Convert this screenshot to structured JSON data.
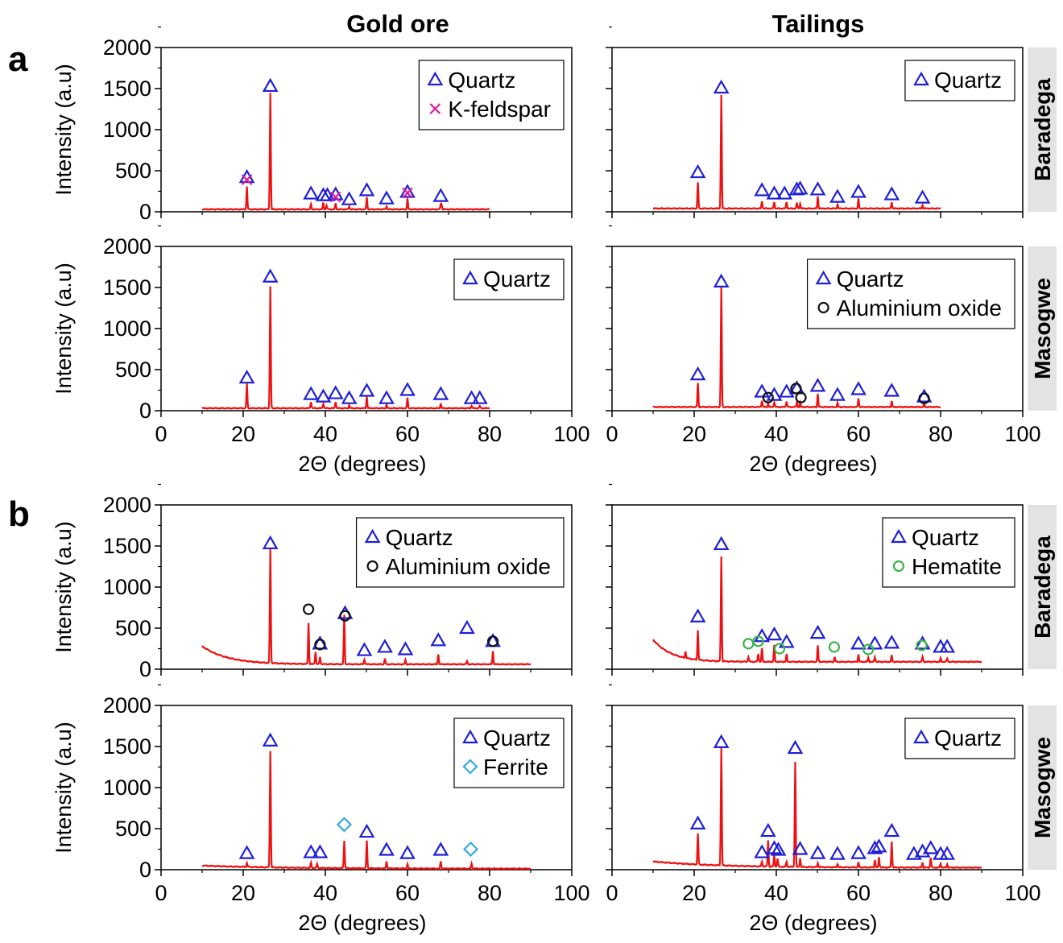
{
  "figure": {
    "columns": [
      "Gold ore",
      "Tailings"
    ],
    "sections": [
      "a",
      "b"
    ],
    "row_labels": [
      "Baradega",
      "Masogwe",
      "Baradega",
      "Masogwe"
    ]
  },
  "axes": {
    "xlabel": "2Θ (degrees)",
    "ylabel": "Intensity (a.u)",
    "xticks": [
      "0",
      "20",
      "40",
      "60",
      "80",
      "100"
    ],
    "yticks": [
      "0",
      "500",
      "1000",
      "1500",
      "2000"
    ]
  },
  "colors": {
    "line": "#ee1111",
    "Quartz": "#1f1fd6",
    "K-feldspar": "#e0199a",
    "Aluminium oxide": "#111111",
    "Hematite": "#3cb44b",
    "Ferrite": "#33aadd",
    "row_label_bg": "#e3e3e3"
  },
  "chart_data": [
    {
      "type": "line",
      "section": "a",
      "column": "Gold ore",
      "row": "Baradega",
      "xlim": [
        0,
        100
      ],
      "ylim": [
        0,
        2000
      ],
      "x_range": [
        10,
        80
      ],
      "baseline": 30,
      "peaks": [
        [
          20.9,
          280
        ],
        [
          26.6,
          1420
        ],
        [
          36.5,
          60
        ],
        [
          39.5,
          80
        ],
        [
          40.3,
          50
        ],
        [
          42.5,
          70
        ],
        [
          45.8,
          40
        ],
        [
          50.1,
          150
        ],
        [
          54.9,
          40
        ],
        [
          60.0,
          130
        ],
        [
          68.1,
          60
        ],
        [
          68.3,
          50
        ]
      ],
      "legend": [
        "Quartz",
        "K-feldspar"
      ],
      "markers": [
        {
          "phase": "Quartz",
          "points": [
            [
              20.9,
              420
            ],
            [
              26.6,
              1530
            ],
            [
              36.5,
              220
            ],
            [
              39.5,
              200
            ],
            [
              40.5,
              200
            ],
            [
              42.5,
              210
            ],
            [
              45.8,
              150
            ],
            [
              50.1,
              260
            ],
            [
              54.9,
              160
            ],
            [
              60.0,
              240
            ],
            [
              68.1,
              190
            ]
          ]
        },
        {
          "phase": "K-feldspar",
          "points": [
            [
              20.9,
              390
            ],
            [
              42.5,
              180
            ],
            [
              60.0,
              230
            ]
          ]
        }
      ]
    },
    {
      "type": "line",
      "section": "a",
      "column": "Tailings",
      "row": "Baradega",
      "xlim": [
        0,
        100
      ],
      "ylim": [
        0,
        2000
      ],
      "x_range": [
        10,
        80
      ],
      "baseline": 40,
      "peaks": [
        [
          20.9,
          320
        ],
        [
          26.6,
          1380
        ],
        [
          36.5,
          90
        ],
        [
          39.5,
          80
        ],
        [
          42.5,
          80
        ],
        [
          45.0,
          70
        ],
        [
          45.8,
          60
        ],
        [
          50.1,
          150
        ],
        [
          54.9,
          50
        ],
        [
          60.0,
          120
        ],
        [
          68.1,
          80
        ],
        [
          75.6,
          40
        ]
      ],
      "legend": [
        "Quartz"
      ],
      "markers": [
        {
          "phase": "Quartz",
          "points": [
            [
              20.9,
              480
            ],
            [
              26.6,
              1510
            ],
            [
              36.5,
              260
            ],
            [
              39.5,
              220
            ],
            [
              42.0,
              220
            ],
            [
              45.0,
              270
            ],
            [
              45.8,
              280
            ],
            [
              50.1,
              270
            ],
            [
              54.9,
              180
            ],
            [
              60.0,
              240
            ],
            [
              68.1,
              210
            ],
            [
              75.6,
              170
            ]
          ]
        }
      ]
    },
    {
      "type": "line",
      "section": "a",
      "column": "Gold ore",
      "row": "Masogwe",
      "xlim": [
        0,
        100
      ],
      "ylim": [
        0,
        2000
      ],
      "x_range": [
        10,
        80
      ],
      "baseline": 30,
      "peaks": [
        [
          20.9,
          300
        ],
        [
          26.6,
          1480
        ],
        [
          36.5,
          80
        ],
        [
          39.5,
          60
        ],
        [
          42.5,
          80
        ],
        [
          45.8,
          40
        ],
        [
          50.1,
          140
        ],
        [
          54.9,
          40
        ],
        [
          60.0,
          130
        ],
        [
          68.1,
          60
        ],
        [
          75.6,
          30
        ],
        [
          77.6,
          30
        ]
      ],
      "legend": [
        "Quartz"
      ],
      "markers": [
        {
          "phase": "Quartz",
          "points": [
            [
              20.9,
              400
            ],
            [
              26.6,
              1630
            ],
            [
              36.5,
              200
            ],
            [
              39.5,
              170
            ],
            [
              42.5,
              210
            ],
            [
              45.8,
              150
            ],
            [
              50.1,
              240
            ],
            [
              54.9,
              150
            ],
            [
              60.0,
              250
            ],
            [
              68.1,
              200
            ],
            [
              75.6,
              150
            ],
            [
              77.6,
              150
            ]
          ]
        }
      ]
    },
    {
      "type": "line",
      "section": "a",
      "column": "Tailings",
      "row": "Masogwe",
      "xlim": [
        0,
        100
      ],
      "ylim": [
        0,
        2000
      ],
      "x_range": [
        10,
        80
      ],
      "baseline": 45,
      "peaks": [
        [
          20.9,
          290
        ],
        [
          26.6,
          1460
        ],
        [
          36.5,
          80
        ],
        [
          38.0,
          40
        ],
        [
          39.5,
          60
        ],
        [
          42.5,
          70
        ],
        [
          45.0,
          60
        ],
        [
          45.8,
          50
        ],
        [
          50.1,
          160
        ],
        [
          54.9,
          50
        ],
        [
          60.0,
          110
        ],
        [
          68.1,
          70
        ],
        [
          76.0,
          40
        ]
      ],
      "legend": [
        "Quartz",
        "Aluminium oxide"
      ],
      "markers": [
        {
          "phase": "Quartz",
          "points": [
            [
              20.9,
              440
            ],
            [
              26.6,
              1570
            ],
            [
              36.5,
              230
            ],
            [
              39.5,
              190
            ],
            [
              42.5,
              230
            ],
            [
              45.0,
              270
            ],
            [
              50.1,
              300
            ],
            [
              54.9,
              190
            ],
            [
              60.0,
              260
            ],
            [
              68.1,
              240
            ],
            [
              76.0,
              170
            ]
          ]
        },
        {
          "phase": "Aluminium oxide",
          "points": [
            [
              38.0,
              160
            ],
            [
              44.8,
              270
            ],
            [
              46.0,
              160
            ],
            [
              76.0,
              150
            ]
          ]
        }
      ]
    },
    {
      "type": "line",
      "section": "b",
      "column": "Gold ore",
      "row": "Baradega",
      "xlim": [
        0,
        100
      ],
      "ylim": [
        0,
        2000
      ],
      "x_range": [
        10,
        90
      ],
      "baseline_decay": {
        "start": 280,
        "end": 60,
        "rate": 0.16
      },
      "peaks": [
        [
          26.6,
          1400
        ],
        [
          35.9,
          500
        ],
        [
          37.6,
          150
        ],
        [
          38.7,
          90
        ],
        [
          44.6,
          600
        ],
        [
          49.5,
          60
        ],
        [
          54.5,
          70
        ],
        [
          59.5,
          50
        ],
        [
          67.5,
          120
        ],
        [
          74.5,
          40
        ],
        [
          80.8,
          160
        ]
      ],
      "legend": [
        "Quartz",
        "Aluminium oxide"
      ],
      "markers": [
        {
          "phase": "Quartz",
          "points": [
            [
              26.6,
              1530
            ],
            [
              38.7,
              310
            ],
            [
              44.8,
              680
            ],
            [
              49.5,
              230
            ],
            [
              54.5,
              270
            ],
            [
              59.5,
              240
            ],
            [
              67.5,
              350
            ],
            [
              74.5,
              500
            ],
            [
              80.8,
              340
            ]
          ]
        },
        {
          "phase": "Aluminium oxide",
          "points": [
            [
              35.9,
              730
            ],
            [
              38.7,
              300
            ],
            [
              44.8,
              650
            ],
            [
              80.8,
              340
            ]
          ]
        }
      ]
    },
    {
      "type": "line",
      "section": "b",
      "column": "Tailings",
      "row": "Baradega",
      "xlim": [
        0,
        100
      ],
      "ylim": [
        0,
        2000
      ],
      "x_range": [
        10,
        90
      ],
      "baseline_decay": {
        "start": 360,
        "end": 90,
        "rate": 0.22
      },
      "peaks": [
        [
          17.9,
          80
        ],
        [
          20.9,
          360
        ],
        [
          26.6,
          1280
        ],
        [
          33.2,
          60
        ],
        [
          35.6,
          100
        ],
        [
          36.5,
          160
        ],
        [
          39.5,
          200
        ],
        [
          42.5,
          90
        ],
        [
          50.1,
          200
        ],
        [
          54.2,
          60
        ],
        [
          60.0,
          90
        ],
        [
          62.4,
          50
        ],
        [
          64.0,
          60
        ],
        [
          68.1,
          80
        ],
        [
          75.6,
          60
        ],
        [
          80.0,
          40
        ],
        [
          81.6,
          40
        ]
      ],
      "legend": [
        "Quartz",
        "Hematite"
      ],
      "markers": [
        {
          "phase": "Quartz",
          "points": [
            [
              20.9,
              640
            ],
            [
              26.6,
              1520
            ],
            [
              36.5,
              400
            ],
            [
              39.5,
              420
            ],
            [
              42.5,
              330
            ],
            [
              50.1,
              440
            ],
            [
              60.0,
              310
            ],
            [
              64.0,
              310
            ],
            [
              68.1,
              320
            ],
            [
              75.6,
              310
            ],
            [
              80.0,
              270
            ],
            [
              81.6,
              270
            ]
          ]
        },
        {
          "phase": "Hematite",
          "points": [
            [
              33.2,
              310
            ],
            [
              35.6,
              340
            ],
            [
              40.8,
              250
            ],
            [
              54.1,
              270
            ],
            [
              62.4,
              240
            ],
            [
              75.4,
              290
            ]
          ]
        }
      ]
    },
    {
      "type": "line",
      "section": "b",
      "column": "Gold ore",
      "row": "Masogwe",
      "xlim": [
        0,
        100
      ],
      "ylim": [
        0,
        2000
      ],
      "x_range": [
        10,
        90
      ],
      "baseline_decay": {
        "start": 50,
        "end": 12,
        "rate": 0.05
      },
      "peaks": [
        [
          20.9,
          50
        ],
        [
          26.6,
          1420
        ],
        [
          36.5,
          60
        ],
        [
          38.0,
          50
        ],
        [
          44.6,
          340
        ],
        [
          50.1,
          340
        ],
        [
          54.9,
          90
        ],
        [
          60.0,
          50
        ],
        [
          68.1,
          90
        ],
        [
          75.6,
          60
        ]
      ],
      "legend": [
        "Quartz",
        "Ferrite"
      ],
      "markers": [
        {
          "phase": "Quartz",
          "points": [
            [
              20.9,
              200
            ],
            [
              26.6,
              1570
            ],
            [
              36.5,
              210
            ],
            [
              38.7,
              210
            ],
            [
              50.1,
              460
            ],
            [
              54.9,
              240
            ],
            [
              60.0,
              200
            ],
            [
              68.1,
              240
            ]
          ]
        },
        {
          "phase": "Ferrite",
          "points": [
            [
              44.6,
              550
            ],
            [
              75.4,
              250
            ]
          ]
        }
      ]
    },
    {
      "type": "line",
      "section": "b",
      "column": "Tailings",
      "row": "Masogwe",
      "xlim": [
        0,
        100
      ],
      "ylim": [
        0,
        2000
      ],
      "x_range": [
        10,
        90
      ],
      "baseline_decay": {
        "start": 100,
        "end": 25,
        "rate": 0.06
      },
      "peaks": [
        [
          20.9,
          380
        ],
        [
          26.6,
          1440
        ],
        [
          36.5,
          60
        ],
        [
          38.0,
          320
        ],
        [
          39.5,
          140
        ],
        [
          40.3,
          100
        ],
        [
          42.5,
          60
        ],
        [
          44.6,
          1280
        ],
        [
          45.8,
          110
        ],
        [
          50.1,
          50
        ],
        [
          54.9,
          40
        ],
        [
          60.0,
          60
        ],
        [
          64.0,
          90
        ],
        [
          65.0,
          130
        ],
        [
          68.1,
          320
        ],
        [
          75.6,
          60
        ],
        [
          77.6,
          120
        ],
        [
          80.0,
          50
        ],
        [
          81.6,
          40
        ]
      ],
      "legend": [
        "Quartz"
      ],
      "markers": [
        {
          "phase": "Quartz",
          "points": [
            [
              20.9,
              560
            ],
            [
              26.6,
              1550
            ],
            [
              36.5,
              210
            ],
            [
              38.0,
              470
            ],
            [
              39.5,
              260
            ],
            [
              40.5,
              240
            ],
            [
              44.6,
              1480
            ],
            [
              45.8,
              250
            ],
            [
              50.1,
              200
            ],
            [
              54.9,
              190
            ],
            [
              60.0,
              200
            ],
            [
              64.0,
              260
            ],
            [
              65.0,
              280
            ],
            [
              68.1,
              470
            ],
            [
              73.5,
              190
            ],
            [
              75.6,
              220
            ],
            [
              77.6,
              260
            ],
            [
              80.0,
              190
            ],
            [
              81.6,
              190
            ]
          ]
        }
      ]
    }
  ]
}
